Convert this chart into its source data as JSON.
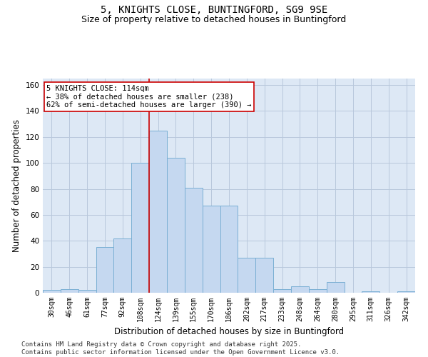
{
  "title_line1": "5, KNIGHTS CLOSE, BUNTINGFORD, SG9 9SE",
  "title_line2": "Size of property relative to detached houses in Buntingford",
  "xlabel": "Distribution of detached houses by size in Buntingford",
  "ylabel": "Number of detached properties",
  "categories": [
    "30sqm",
    "46sqm",
    "61sqm",
    "77sqm",
    "92sqm",
    "108sqm",
    "124sqm",
    "139sqm",
    "155sqm",
    "170sqm",
    "186sqm",
    "202sqm",
    "217sqm",
    "233sqm",
    "248sqm",
    "264sqm",
    "280sqm",
    "295sqm",
    "311sqm",
    "326sqm",
    "342sqm"
  ],
  "values": [
    2,
    3,
    2,
    35,
    42,
    100,
    125,
    104,
    81,
    67,
    67,
    27,
    27,
    3,
    5,
    3,
    8,
    0,
    1,
    0,
    1
  ],
  "bar_color": "#c5d8f0",
  "bar_edge_color": "#7aafd4",
  "vline_x": 5.5,
  "vline_color": "#cc0000",
  "annotation_text": "5 KNIGHTS CLOSE: 114sqm\n← 38% of detached houses are smaller (238)\n62% of semi-detached houses are larger (390) →",
  "annotation_box_color": "#ffffff",
  "annotation_box_edge": "#cc0000",
  "ylim": [
    0,
    165
  ],
  "yticks": [
    0,
    20,
    40,
    60,
    80,
    100,
    120,
    140,
    160
  ],
  "footer_line1": "Contains HM Land Registry data © Crown copyright and database right 2025.",
  "footer_line2": "Contains public sector information licensed under the Open Government Licence v3.0.",
  "bg_color": "#ffffff",
  "plot_bg_color": "#dde8f5",
  "grid_color": "#b8c8dc",
  "title_fontsize": 10,
  "subtitle_fontsize": 9,
  "tick_fontsize": 7,
  "label_fontsize": 8.5,
  "footer_fontsize": 6.5,
  "annot_fontsize": 7.5
}
